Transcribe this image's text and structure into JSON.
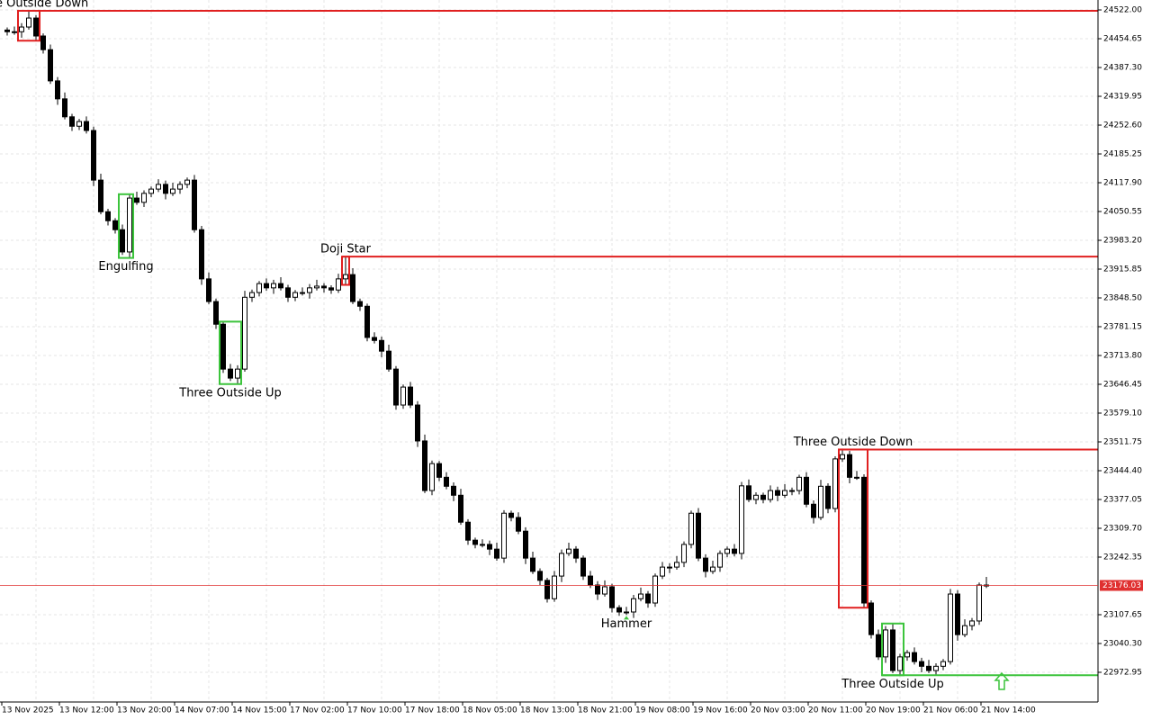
{
  "chart_data": {
    "type": "candlestick",
    "categories": [
      "13 Nov 2025",
      null,
      null,
      null,
      null,
      null,
      null,
      null,
      "13 Nov 12:00",
      null,
      null,
      null,
      null,
      null,
      null,
      null,
      "13 Nov 20:00",
      null,
      null,
      null,
      null,
      null,
      null,
      null,
      "14 Nov 07:00",
      null,
      null,
      null,
      null,
      null,
      null,
      null,
      "14 Nov 15:00",
      null,
      null,
      null,
      null,
      null,
      null,
      null,
      "17 Nov 02:00",
      null,
      null,
      null,
      null,
      null,
      null,
      null,
      "17 Nov 10:00",
      null,
      null,
      null,
      null,
      null,
      null,
      null,
      "17 Nov 18:00",
      null,
      null,
      null,
      null,
      null,
      null,
      null,
      "18 Nov 05:00",
      null,
      null,
      null,
      null,
      null,
      null,
      null,
      "18 Nov 13:00",
      null,
      null,
      null,
      null,
      null,
      null,
      null,
      "18 Nov 21:00",
      null,
      null,
      null,
      null,
      null,
      null,
      null,
      "19 Nov 08:00",
      null,
      null,
      null,
      null,
      null,
      null,
      null,
      "19 Nov 16:00",
      null,
      null,
      null,
      null,
      null,
      null,
      null,
      "20 Nov 03:00",
      null,
      null,
      null,
      null,
      null,
      null,
      null,
      "20 Nov 11:00",
      null,
      null,
      null,
      null,
      null,
      null,
      null,
      "20 Nov 19:00",
      null,
      null,
      null,
      null,
      null,
      null,
      null,
      "21 Nov 06:00",
      null,
      null,
      null,
      null,
      null,
      null,
      null,
      "21 Nov 14:00"
    ],
    "candles": [
      [
        24475,
        24481,
        24462,
        24471
      ],
      [
        24471,
        24483,
        24464,
        24471
      ],
      [
        24471,
        24491,
        24457,
        24482
      ],
      [
        24482,
        24520,
        24476,
        24503
      ],
      [
        24503,
        24510,
        24450,
        24461
      ],
      [
        24461,
        24467,
        24420,
        24429
      ],
      [
        24429,
        24441,
        24349,
        24356
      ],
      [
        24356,
        24365,
        24300,
        24314
      ],
      [
        24314,
        24329,
        24266,
        24272
      ],
      [
        24272,
        24279,
        24239,
        24250
      ],
      [
        24250,
        24267,
        24241,
        24261
      ],
      [
        24261,
        24273,
        24233,
        24240
      ],
      [
        24240,
        24249,
        24110,
        24124
      ],
      [
        24124,
        24139,
        24044,
        24050
      ],
      [
        24050,
        24057,
        24018,
        24029
      ],
      [
        24029,
        24035,
        23999,
        24008
      ],
      [
        24008,
        24020,
        23949,
        23956
      ],
      [
        23956,
        24091,
        23942,
        24082
      ],
      [
        24082,
        24097,
        24066,
        24072
      ],
      [
        24072,
        24100,
        24061,
        24093
      ],
      [
        24093,
        24109,
        24084,
        24103
      ],
      [
        24103,
        24126,
        24096,
        24114
      ],
      [
        24114,
        24123,
        24079,
        24093
      ],
      [
        24093,
        24118,
        24087,
        24103
      ],
      [
        24103,
        24121,
        24092,
        24114
      ],
      [
        24114,
        24130,
        24105,
        24124
      ],
      [
        24124,
        24136,
        24001,
        24008
      ],
      [
        24008,
        24017,
        23879,
        23893
      ],
      [
        23893,
        23908,
        23834,
        23840
      ],
      [
        23840,
        23847,
        23776,
        23787
      ],
      [
        23787,
        23793,
        23673,
        23682
      ],
      [
        23682,
        23694,
        23654,
        23661
      ],
      [
        23661,
        23691,
        23647,
        23682
      ],
      [
        23682,
        23865,
        23676,
        23850
      ],
      [
        23850,
        23868,
        23839,
        23861
      ],
      [
        23861,
        23888,
        23852,
        23882
      ],
      [
        23882,
        23894,
        23865,
        23872
      ],
      [
        23872,
        23891,
        23858,
        23882
      ],
      [
        23882,
        23897,
        23866,
        23872
      ],
      [
        23872,
        23879,
        23839,
        23850
      ],
      [
        23850,
        23867,
        23841,
        23861
      ],
      [
        23861,
        23873,
        23854,
        23861
      ],
      [
        23861,
        23881,
        23847,
        23872
      ],
      [
        23872,
        23891,
        23866,
        23876
      ],
      [
        23876,
        23883,
        23861,
        23872
      ],
      [
        23872,
        23878,
        23858,
        23867
      ],
      [
        23867,
        23905,
        23860,
        23893
      ],
      [
        23893,
        23945,
        23879,
        23903
      ],
      [
        23903,
        23918,
        23834,
        23840
      ],
      [
        23840,
        23847,
        23818,
        23829
      ],
      [
        23829,
        23835,
        23747,
        23756
      ],
      [
        23756,
        23768,
        23742,
        23749
      ],
      [
        23749,
        23758,
        23710,
        23724
      ],
      [
        23724,
        23739,
        23676,
        23682
      ],
      [
        23682,
        23689,
        23587,
        23598
      ],
      [
        23598,
        23646,
        23589,
        23640
      ],
      [
        23640,
        23652,
        23591,
        23598
      ],
      [
        23598,
        23607,
        23500,
        23514
      ],
      [
        23514,
        23529,
        23392,
        23398
      ],
      [
        23398,
        23468,
        23387,
        23461
      ],
      [
        23461,
        23467,
        23420,
        23429
      ],
      [
        23429,
        23441,
        23401,
        23408
      ],
      [
        23408,
        23417,
        23373,
        23387
      ],
      [
        23387,
        23402,
        23318,
        23324
      ],
      [
        23324,
        23331,
        23271,
        23282
      ],
      [
        23282,
        23288,
        23263,
        23272
      ],
      [
        23272,
        23284,
        23265,
        23272
      ],
      [
        23272,
        23281,
        23247,
        23261
      ],
      [
        23261,
        23276,
        23234,
        23240
      ],
      [
        23240,
        23352,
        23229,
        23345
      ],
      [
        23345,
        23351,
        23326,
        23335
      ],
      [
        23335,
        23347,
        23296,
        23303
      ],
      [
        23303,
        23312,
        23226,
        23240
      ],
      [
        23240,
        23255,
        23203,
        23209
      ],
      [
        23209,
        23216,
        23177,
        23188
      ],
      [
        23188,
        23194,
        23136,
        23145
      ],
      [
        23145,
        23210,
        23138,
        23198
      ],
      [
        23198,
        23260,
        23184,
        23251
      ],
      [
        23251,
        23276,
        23245,
        23261
      ],
      [
        23261,
        23268,
        23229,
        23240
      ],
      [
        23240,
        23246,
        23189,
        23198
      ],
      [
        23198,
        23210,
        23170,
        23177
      ],
      [
        23177,
        23186,
        23142,
        23156
      ],
      [
        23156,
        23188,
        23150,
        23173
      ],
      [
        23173,
        23180,
        23113,
        23124
      ],
      [
        23124,
        23130,
        23105,
        23114
      ],
      [
        23114,
        23126,
        23107,
        23114
      ],
      [
        23114,
        23154,
        23100,
        23145
      ],
      [
        23145,
        23171,
        23139,
        23156
      ],
      [
        23156,
        23163,
        23124,
        23135
      ],
      [
        23135,
        23204,
        23126,
        23198
      ],
      [
        23198,
        23231,
        23191,
        23219
      ],
      [
        23219,
        23228,
        23205,
        23219
      ],
      [
        23219,
        23245,
        23213,
        23230
      ],
      [
        23230,
        23279,
        23219,
        23272
      ],
      [
        23272,
        23351,
        23263,
        23345
      ],
      [
        23345,
        23357,
        23233,
        23240
      ],
      [
        23240,
        23249,
        23195,
        23209
      ],
      [
        23209,
        23234,
        23203,
        23219
      ],
      [
        23219,
        23258,
        23208,
        23251
      ],
      [
        23251,
        23267,
        23242,
        23261
      ],
      [
        23261,
        23273,
        23244,
        23251
      ],
      [
        23251,
        23418,
        23237,
        23409
      ],
      [
        23409,
        23424,
        23371,
        23377
      ],
      [
        23377,
        23394,
        23366,
        23387
      ],
      [
        23387,
        23393,
        23368,
        23377
      ],
      [
        23377,
        23410,
        23370,
        23398
      ],
      [
        23398,
        23407,
        23373,
        23387
      ],
      [
        23387,
        23413,
        23381,
        23398
      ],
      [
        23398,
        23405,
        23387,
        23398
      ],
      [
        23398,
        23435,
        23389,
        23429
      ],
      [
        23429,
        23441,
        23359,
        23366
      ],
      [
        23366,
        23375,
        23321,
        23335
      ],
      [
        23335,
        23423,
        23329,
        23408
      ],
      [
        23408,
        23415,
        23345,
        23356
      ],
      [
        23356,
        23478,
        23347,
        23472
      ],
      [
        23472,
        23494,
        23465,
        23482
      ],
      [
        23482,
        23491,
        23415,
        23429
      ],
      [
        23429,
        23444,
        23423,
        23429
      ],
      [
        23429,
        23436,
        23124,
        23135
      ],
      [
        23135,
        23141,
        23052,
        23061
      ],
      [
        23061,
        23073,
        23002,
        23009
      ],
      [
        23009,
        23081,
        22995,
        23072
      ],
      [
        23072,
        23087,
        22971,
        22977
      ],
      [
        22977,
        23016,
        22966,
        23009
      ],
      [
        23009,
        23025,
        23000,
        23019
      ],
      [
        23019,
        23031,
        22991,
        22998
      ],
      [
        22998,
        23007,
        22973,
        22987
      ],
      [
        22987,
        23002,
        22971,
        22977
      ],
      [
        22977,
        22994,
        22966,
        22987
      ],
      [
        22987,
        23004,
        22978,
        22998
      ],
      [
        22998,
        23168,
        22991,
        23156
      ],
      [
        23156,
        23165,
        23047,
        23061
      ],
      [
        23061,
        23097,
        23055,
        23082
      ],
      [
        23082,
        23100,
        23071,
        23093
      ],
      [
        23093,
        23183,
        23084,
        23177
      ],
      [
        23177,
        23196,
        23170,
        23176.03
      ]
    ],
    "ylim": [
      22903.5,
      24545.2
    ],
    "yticks": [
      {
        "value": 24522,
        "label": "24522.00"
      },
      {
        "value": 24454.65,
        "label": "24454.65"
      },
      {
        "value": 24387.3,
        "label": "24387.30"
      },
      {
        "value": 24319.95,
        "label": "24319.95"
      },
      {
        "value": 24252.6,
        "label": "24252.60"
      },
      {
        "value": 24185.25,
        "label": "24185.25"
      },
      {
        "value": 24117.9,
        "label": "24117.90"
      },
      {
        "value": 24050.55,
        "label": "24050.55"
      },
      {
        "value": 23983.2,
        "label": "23983.20"
      },
      {
        "value": 23915.85,
        "label": "23915.85"
      },
      {
        "value": 23848.5,
        "label": "23848.50"
      },
      {
        "value": 23781.15,
        "label": "23781.15"
      },
      {
        "value": 23713.8,
        "label": "23713.80"
      },
      {
        "value": 23646.45,
        "label": "23646.45"
      },
      {
        "value": 23579.1,
        "label": "23579.10"
      },
      {
        "value": 23511.75,
        "label": "23511.75"
      },
      {
        "value": 23444.4,
        "label": "23444.40"
      },
      {
        "value": 23377.05,
        "label": "23377.05"
      },
      {
        "value": 23309.7,
        "label": "23309.70"
      },
      {
        "value": 23242.35,
        "label": "23242.35"
      },
      {
        "value": 23107.65,
        "label": "23107.65"
      },
      {
        "value": 23040.3,
        "label": "23040.30"
      },
      {
        "value": 22972.95,
        "label": "22972.95"
      }
    ],
    "current_price": {
      "value": 23176.03,
      "label": "23176.03",
      "color": "#e03030"
    },
    "grid": true,
    "patterns": [
      {
        "label": "Three Outside Down",
        "color": "#e02020",
        "start": 2,
        "end": 4,
        "direction": "down",
        "box": true,
        "level": true
      },
      {
        "label": "Engulfing",
        "color": "#3cc43c",
        "start": 16,
        "end": 17,
        "direction": "up",
        "box": true,
        "level": false
      },
      {
        "label": "Three Outside Up",
        "color": "#3cc43c",
        "start": 30,
        "end": 32,
        "direction": "up",
        "box": true,
        "level": false
      },
      {
        "label": "Doji Star",
        "color": "#e02020",
        "start": 47,
        "end": 47,
        "direction": "down",
        "box": true,
        "level": true
      },
      {
        "label": "Hammer",
        "color": "#3cc43c",
        "start": 86,
        "end": 86,
        "direction": "up",
        "box": false,
        "level": false
      },
      {
        "label": "Three Outside Down",
        "color": "#e02020",
        "start": 116,
        "end": 119,
        "direction": "down",
        "box": true,
        "level": true
      },
      {
        "label": "Three Outside Up",
        "color": "#3cc43c",
        "start": 122,
        "end": 124,
        "direction": "up",
        "box": true,
        "level": true
      }
    ]
  }
}
